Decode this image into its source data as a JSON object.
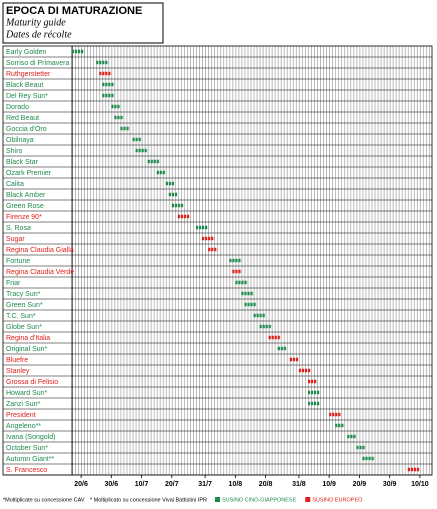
{
  "chart_data": {
    "type": "gantt",
    "title": "EPOCA DI MATURAZIONE",
    "subtitles": [
      "Maturity guide",
      "Dates de récolte"
    ],
    "categories": [
      "Early Golden",
      "Sorriso di Primavera",
      "Ruthgerstetter",
      "Black Beaut",
      "Del Rey Sun*",
      "Dorado",
      "Red Beaut",
      "Goccia d'Oro",
      "Obilnaya",
      "Shiro",
      "Black Star",
      "Ozark Premier",
      "Calita",
      "Black Amber",
      "Green Rose",
      "Firenze 90*",
      "S. Rosa",
      "Sugar",
      "Regina Claudia Gialla",
      "Fortune",
      "Regina Claudia Verde",
      "Friar",
      "Tracy Sun*",
      "Green Sun*",
      "T.C. Sun*",
      "Globe Sun*",
      "Regina d'Italia",
      "Original Sun*",
      "Bluefre",
      "Stanley",
      "Grossa di Felisio",
      "Howard Sun*",
      "Zanzi Sun*",
      "President",
      "Angeleno**",
      "Ivana (Songold)",
      "October Sun*",
      "Autumn Giant**",
      "S. Francesco"
    ],
    "series": [
      {
        "name": "SUSINO CINO-GIAPPONESE",
        "color": "#1f8a4c",
        "values": [
          [
            168,
            172
          ],
          [
            176,
            180
          ],
          null,
          [
            178,
            182
          ],
          [
            178,
            182
          ],
          [
            181,
            184
          ],
          [
            182,
            185
          ],
          [
            184,
            187
          ],
          [
            188,
            191
          ],
          [
            189,
            193
          ],
          [
            193,
            197
          ],
          [
            196,
            199
          ],
          [
            199,
            202
          ],
          [
            200,
            203
          ],
          [
            201,
            205
          ],
          null,
          [
            209,
            213
          ],
          null,
          null,
          [
            220,
            224
          ],
          null,
          [
            222,
            226
          ],
          [
            224,
            228
          ],
          [
            225,
            229
          ],
          [
            228,
            232
          ],
          [
            230,
            234
          ],
          null,
          [
            236,
            239
          ],
          null,
          null,
          null,
          [
            246,
            250
          ],
          [
            246,
            250
          ],
          null,
          [
            255,
            258
          ],
          [
            259,
            262
          ],
          [
            262,
            265
          ],
          [
            264,
            268
          ],
          null
        ]
      },
      {
        "name": "SUSINO EUROPEO",
        "color": "#e0201c",
        "values": [
          null,
          null,
          [
            177,
            181
          ],
          null,
          null,
          null,
          null,
          null,
          null,
          null,
          null,
          null,
          null,
          null,
          null,
          [
            203,
            207
          ],
          null,
          [
            211,
            215
          ],
          [
            213,
            216
          ],
          null,
          [
            221,
            224
          ],
          null,
          null,
          null,
          null,
          null,
          [
            233,
            237
          ],
          null,
          [
            240,
            243
          ],
          [
            243,
            247
          ],
          [
            246,
            249
          ],
          null,
          null,
          [
            253,
            257
          ],
          null,
          null,
          null,
          null,
          [
            279,
            283
          ]
        ]
      }
    ],
    "xlim": [
      168,
      287
    ],
    "xticks": [
      {
        "value": 171,
        "label": "20/6"
      },
      {
        "value": 181,
        "label": "30/6"
      },
      {
        "value": 191,
        "label": "10/7"
      },
      {
        "value": 201,
        "label": "20/7"
      },
      {
        "value": 212,
        "label": "31/7"
      },
      {
        "value": 222,
        "label": "10/8"
      },
      {
        "value": 232,
        "label": "20/8"
      },
      {
        "value": 243,
        "label": "31/8"
      },
      {
        "value": 253,
        "label": "10/9"
      },
      {
        "value": 263,
        "label": "20/9"
      },
      {
        "value": 273,
        "label": "30/9"
      },
      {
        "value": 283,
        "label": "10/10"
      }
    ],
    "notes": [
      "*Moltiplicate su concessione CAV",
      "* Moltiplicato su concessione Vivai Battistini IPR"
    ]
  }
}
